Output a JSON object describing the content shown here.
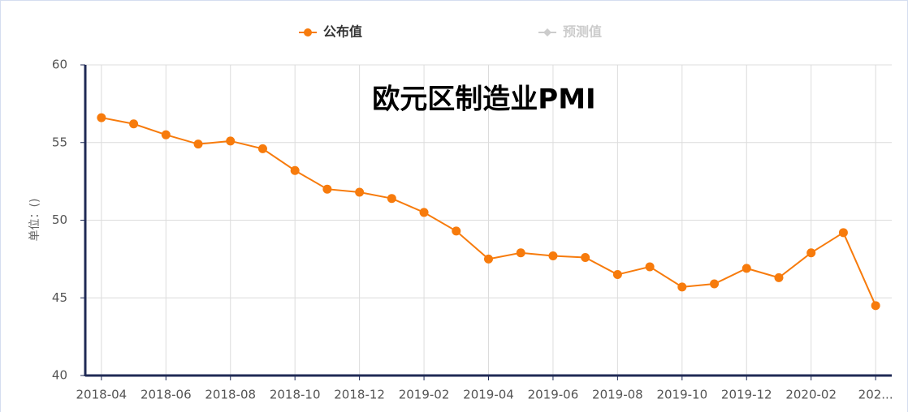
{
  "chart_data": {
    "type": "line",
    "title": "欧元区制造业PMI",
    "y_label": "单位：()",
    "categories": [
      "2018-04",
      null,
      "2018-06",
      null,
      "2018-08",
      null,
      "2018-10",
      null,
      "2018-12",
      null,
      "2019-02",
      null,
      "2019-04",
      null,
      "2019-06",
      null,
      "2019-08",
      null,
      "2019-10",
      null,
      "2019-12",
      null,
      "2020-02",
      null,
      "202..."
    ],
    "series": [
      {
        "name": "公布值",
        "color": "#f77b0c",
        "values": [
          56.6,
          56.2,
          55.5,
          54.9,
          55.1,
          54.6,
          53.2,
          52.0,
          51.8,
          51.4,
          50.5,
          49.3,
          47.5,
          47.9,
          47.7,
          47.6,
          46.5,
          47.0,
          45.7,
          45.9,
          46.9,
          46.3,
          47.9,
          49.2,
          44.5
        ]
      },
      {
        "name": "预测值",
        "color": "#cccccc",
        "values": [
          null,
          null,
          null,
          null,
          null,
          null,
          null,
          null,
          null,
          null,
          null,
          null,
          null,
          null,
          null,
          null,
          null,
          null,
          null,
          null,
          null,
          null,
          null,
          null,
          null
        ]
      }
    ],
    "ylim": [
      40,
      60
    ],
    "yticks": [
      40,
      45,
      50,
      55,
      60
    ],
    "grid": true
  }
}
